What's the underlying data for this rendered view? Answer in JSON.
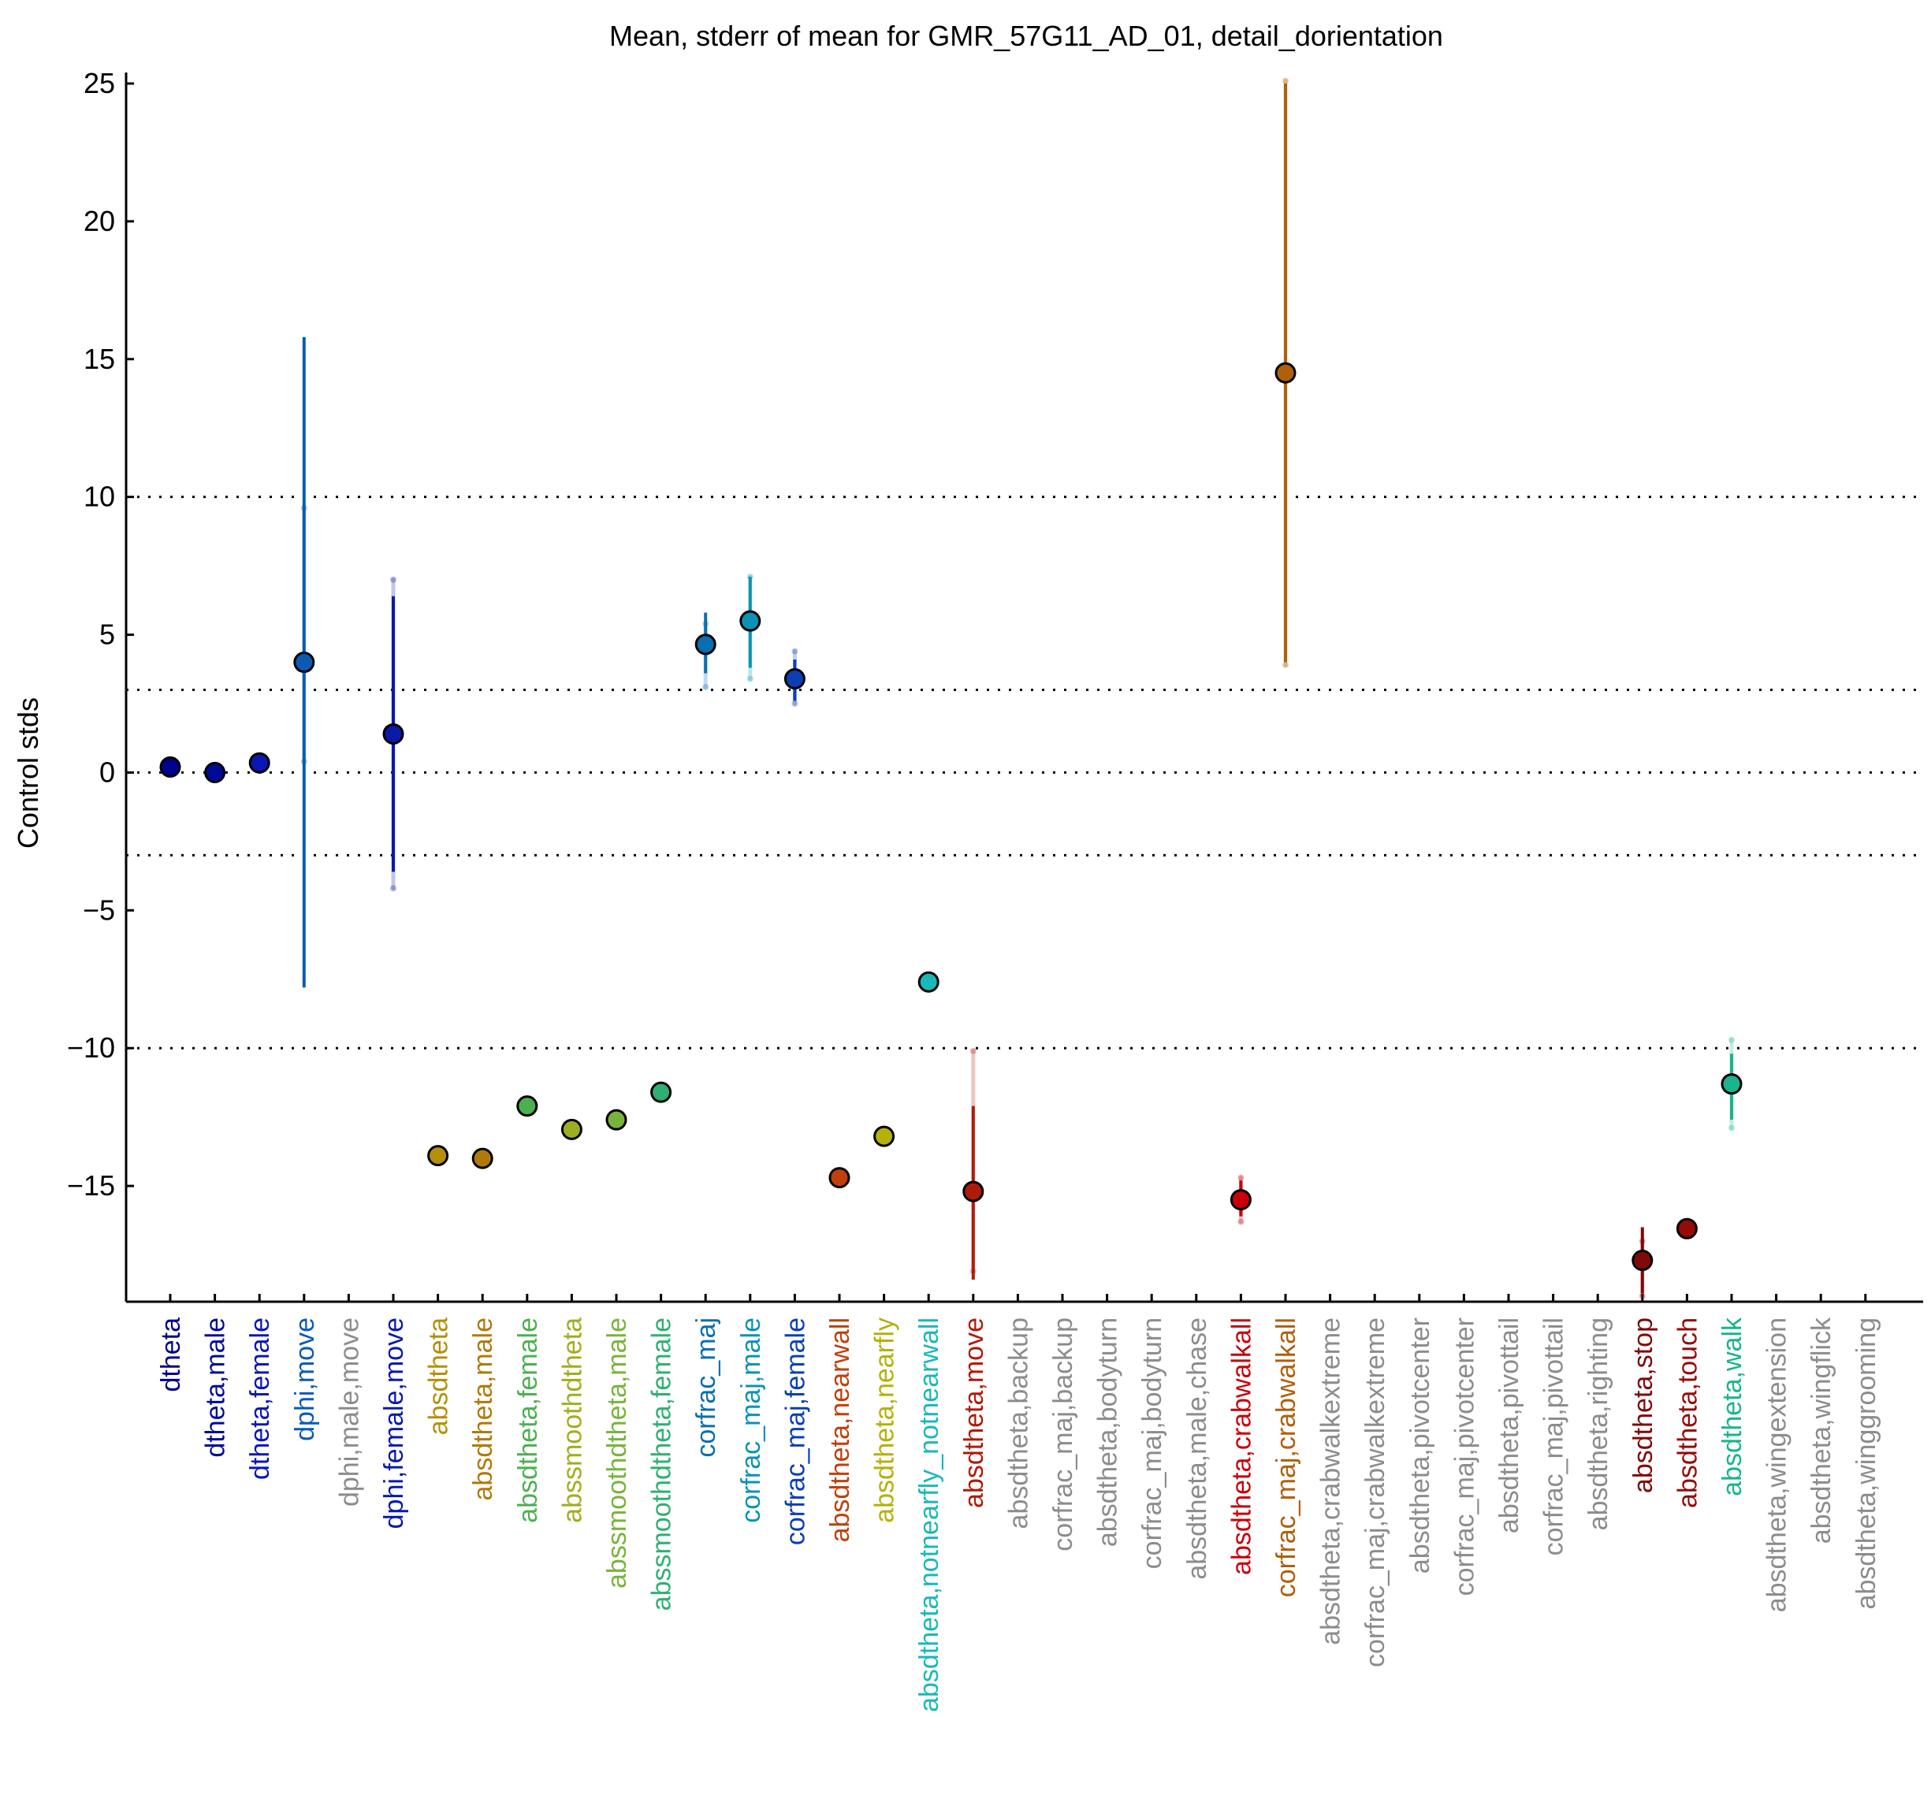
{
  "chart_data": {
    "type": "scatter",
    "title": "Mean, stderr of mean for GMR_57G11_AD_01, detail_dorientation",
    "xlabel": "",
    "ylabel": "Control stds",
    "ylim": [
      -19.2,
      25.4
    ],
    "yticks": [
      25,
      20,
      15,
      10,
      5,
      0,
      -5,
      -10,
      -15
    ],
    "ytick_labels": [
      "25",
      "20",
      "15",
      "10",
      "5",
      "0",
      "−5",
      "−10",
      "−15"
    ],
    "reference_lines": [
      10,
      3,
      0,
      -3,
      -10
    ],
    "grid": false,
    "points": [
      {
        "label": "dtheta",
        "color": "#00008f",
        "mean": 0.2,
        "err_lo": null,
        "err_hi": null,
        "pale_lo": null,
        "pale_hi": null
      },
      {
        "label": "dtheta,male",
        "color": "#000a99",
        "mean": 0.0,
        "err_lo": null,
        "err_hi": null,
        "pale_lo": null,
        "pale_hi": null
      },
      {
        "label": "dtheta,female",
        "color": "#0a17b5",
        "mean": 0.35,
        "err_lo": null,
        "err_hi": null,
        "pale_lo": null,
        "pale_hi": null
      },
      {
        "label": "dphi,move",
        "color": "#0b5bb5",
        "mean": 4.0,
        "err_lo": -7.8,
        "err_hi": 15.8,
        "pale_lo": 0.4,
        "pale_hi": 9.6
      },
      {
        "label": "dphi,male,move",
        "color": "#8c8c8c",
        "mean": null,
        "err_lo": null,
        "err_hi": null,
        "pale_lo": null,
        "pale_hi": null
      },
      {
        "label": "dphi,female,move",
        "color": "#0a1aa8",
        "mean": 1.4,
        "err_lo": -3.6,
        "err_hi": 6.4,
        "pale_lo": -4.2,
        "pale_hi": 7.0
      },
      {
        "label": "absdtheta",
        "color": "#b58f0a",
        "mean": -13.9,
        "err_lo": null,
        "err_hi": null,
        "pale_lo": null,
        "pale_hi": null
      },
      {
        "label": "absdtheta,male",
        "color": "#b07a0a",
        "mean": -14.0,
        "err_lo": null,
        "err_hi": null,
        "pale_lo": null,
        "pale_hi": null
      },
      {
        "label": "absdtheta,female",
        "color": "#4cb050",
        "mean": -12.1,
        "err_lo": null,
        "err_hi": null,
        "pale_lo": null,
        "pale_hi": null
      },
      {
        "label": "abssmoothdtheta",
        "color": "#9fae1e",
        "mean": -12.95,
        "err_lo": null,
        "err_hi": null,
        "pale_lo": null,
        "pale_hi": null
      },
      {
        "label": "abssmoothdtheta,male",
        "color": "#78b43a",
        "mean": -12.6,
        "err_lo": null,
        "err_hi": null,
        "pale_lo": null,
        "pale_hi": null
      },
      {
        "label": "abssmoothdtheta,female",
        "color": "#2fb072",
        "mean": -11.6,
        "err_lo": null,
        "err_hi": null,
        "pale_lo": null,
        "pale_hi": null
      },
      {
        "label": "corfrac_maj",
        "color": "#0a6fb0",
        "mean": 4.65,
        "err_lo": 3.6,
        "err_hi": 5.8,
        "pale_lo": 3.1,
        "pale_hi": 5.4
      },
      {
        "label": "corfrac_maj,male",
        "color": "#0a93b5",
        "mean": 5.5,
        "err_lo": 3.8,
        "err_hi": 7.1,
        "pale_lo": 3.4,
        "pale_hi": 7.1
      },
      {
        "label": "corfrac_maj,female",
        "color": "#0a3fb5",
        "mean": 3.4,
        "err_lo": 2.6,
        "err_hi": 4.1,
        "pale_lo": 2.5,
        "pale_hi": 4.4
      },
      {
        "label": "absdtheta,nearwall",
        "color": "#c0400a",
        "mean": -14.7,
        "err_lo": null,
        "err_hi": null,
        "pale_lo": null,
        "pale_hi": null
      },
      {
        "label": "absdtheta,nearfly",
        "color": "#b5b00a",
        "mean": -13.2,
        "err_lo": null,
        "err_hi": null,
        "pale_lo": null,
        "pale_hi": null
      },
      {
        "label": "absdtheta,notnearfly_notnearwall",
        "color": "#1ab8b8",
        "mean": -7.6,
        "err_lo": null,
        "err_hi": null,
        "pale_lo": null,
        "pale_hi": null
      },
      {
        "label": "absdtheta,move",
        "color": "#b01a0a",
        "mean": -15.2,
        "err_lo": -18.4,
        "err_hi": -12.1,
        "pale_lo": -18.1,
        "pale_hi": -10.1
      },
      {
        "label": "absdtheta,backup",
        "color": "#8c8c8c",
        "mean": null,
        "err_lo": null,
        "err_hi": null,
        "pale_lo": null,
        "pale_hi": null
      },
      {
        "label": "corfrac_maj,backup",
        "color": "#8c8c8c",
        "mean": null,
        "err_lo": null,
        "err_hi": null,
        "pale_lo": null,
        "pale_hi": null
      },
      {
        "label": "absdtheta,bodyturn",
        "color": "#8c8c8c",
        "mean": null,
        "err_lo": null,
        "err_hi": null,
        "pale_lo": null,
        "pale_hi": null
      },
      {
        "label": "corfrac_maj,bodyturn",
        "color": "#8c8c8c",
        "mean": null,
        "err_lo": null,
        "err_hi": null,
        "pale_lo": null,
        "pale_hi": null
      },
      {
        "label": "absdtheta,male,chase",
        "color": "#8c8c8c",
        "mean": null,
        "err_lo": null,
        "err_hi": null,
        "pale_lo": null,
        "pale_hi": null
      },
      {
        "label": "absdtheta,crabwalkall",
        "color": "#c8000a",
        "mean": -15.5,
        "err_lo": -16.1,
        "err_hi": -14.8,
        "pale_lo": -16.3,
        "pale_hi": -14.7
      },
      {
        "label": "corfrac_maj,crabwalkall",
        "color": "#b0600a",
        "mean": 14.5,
        "err_lo": 4.0,
        "err_hi": 25.0,
        "pale_lo": 3.9,
        "pale_hi": 25.1
      },
      {
        "label": "absdtheta,crabwalkextreme",
        "color": "#8c8c8c",
        "mean": null,
        "err_lo": null,
        "err_hi": null,
        "pale_lo": null,
        "pale_hi": null
      },
      {
        "label": "corfrac_maj,crabwalkextreme",
        "color": "#8c8c8c",
        "mean": null,
        "err_lo": null,
        "err_hi": null,
        "pale_lo": null,
        "pale_hi": null
      },
      {
        "label": "absdtheta,pivotcenter",
        "color": "#8c8c8c",
        "mean": null,
        "err_lo": null,
        "err_hi": null,
        "pale_lo": null,
        "pale_hi": null
      },
      {
        "label": "corfrac_maj,pivotcenter",
        "color": "#8c8c8c",
        "mean": null,
        "err_lo": null,
        "err_hi": null,
        "pale_lo": null,
        "pale_hi": null
      },
      {
        "label": "absdtheta,pivottail",
        "color": "#8c8c8c",
        "mean": null,
        "err_lo": null,
        "err_hi": null,
        "pale_lo": null,
        "pale_hi": null
      },
      {
        "label": "corfrac_maj,pivottail",
        "color": "#8c8c8c",
        "mean": null,
        "err_lo": null,
        "err_hi": null,
        "pale_lo": null,
        "pale_hi": null
      },
      {
        "label": "absdtheta,righting",
        "color": "#8c8c8c",
        "mean": null,
        "err_lo": null,
        "err_hi": null,
        "pale_lo": null,
        "pale_hi": null
      },
      {
        "label": "absdtheta,stop",
        "color": "#800a0a",
        "mean": -17.7,
        "err_lo": -18.9,
        "err_hi": -16.5,
        "pale_lo": -19.0,
        "pale_hi": -17.0
      },
      {
        "label": "absdtheta,touch",
        "color": "#960a0a",
        "mean": -16.55,
        "err_lo": null,
        "err_hi": null,
        "pale_lo": null,
        "pale_hi": null
      },
      {
        "label": "absdtheta,walk",
        "color": "#1ab48f",
        "mean": -11.3,
        "err_lo": -12.6,
        "err_hi": -10.2,
        "pale_lo": -12.9,
        "pale_hi": -9.7
      },
      {
        "label": "absdtheta,wingextension",
        "color": "#8c8c8c",
        "mean": null,
        "err_lo": null,
        "err_hi": null,
        "pale_lo": null,
        "pale_hi": null
      },
      {
        "label": "absdtheta,wingflick",
        "color": "#8c8c8c",
        "mean": null,
        "err_lo": null,
        "err_hi": null,
        "pale_lo": null,
        "pale_hi": null
      },
      {
        "label": "absdtheta,winggrooming",
        "color": "#8c8c8c",
        "mean": null,
        "err_lo": null,
        "err_hi": null,
        "pale_lo": null,
        "pale_hi": null
      }
    ]
  }
}
